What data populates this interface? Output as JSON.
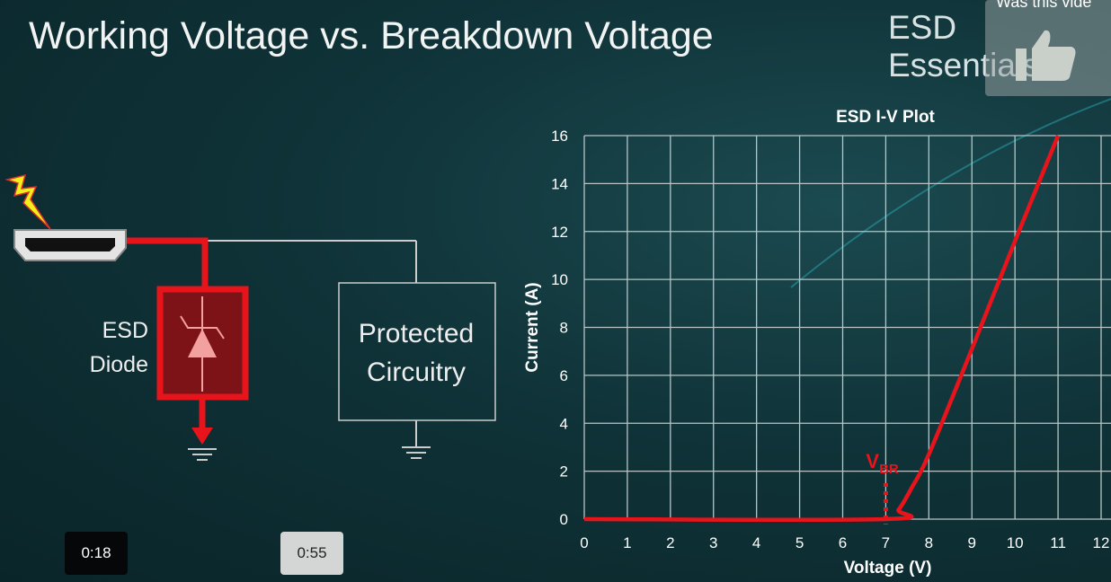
{
  "slide": {
    "title": "Working Voltage vs. Breakdown Voltage",
    "brand": "ESD Essentials",
    "diagram": {
      "diode_label_line1": "ESD",
      "diode_label_line2": "Diode",
      "protected_line1": "Protected",
      "protected_line2": "Circuitry",
      "icons": [
        "lightning-icon",
        "hdmi-port-icon",
        "tvs-diode-icon",
        "ground-icon"
      ]
    }
  },
  "feedback": {
    "question": "Was this vide",
    "icon": "thumbs-up-icon"
  },
  "player": {
    "time_start": "0:18",
    "time_end": "0:55"
  },
  "colors": {
    "accent": "#e8141c",
    "grid": "#b9c4c4",
    "background": "#0f3338"
  },
  "chart_data": {
    "type": "line",
    "title": "ESD I-V Plot",
    "xlabel": "Voltage (V)",
    "ylabel": "Current (A)",
    "xlim": [
      0,
      12
    ],
    "ylim": [
      0,
      16
    ],
    "xticks": [
      "0",
      "1",
      "2",
      "3",
      "4",
      "5",
      "6",
      "7",
      "8",
      "9",
      "10",
      "11",
      "12"
    ],
    "yticks": [
      "0",
      "2",
      "4",
      "6",
      "8",
      "10",
      "12",
      "14",
      "16"
    ],
    "grid": true,
    "series": [
      {
        "x": [
          0,
          7,
          7.3,
          7.6,
          8,
          9,
          10,
          11
        ],
        "y": [
          0,
          0,
          0.4,
          1.3,
          2.7,
          7.1,
          11.6,
          16
        ]
      }
    ],
    "annotation": {
      "label": "V",
      "subscript": "BR",
      "x": 7
    }
  }
}
